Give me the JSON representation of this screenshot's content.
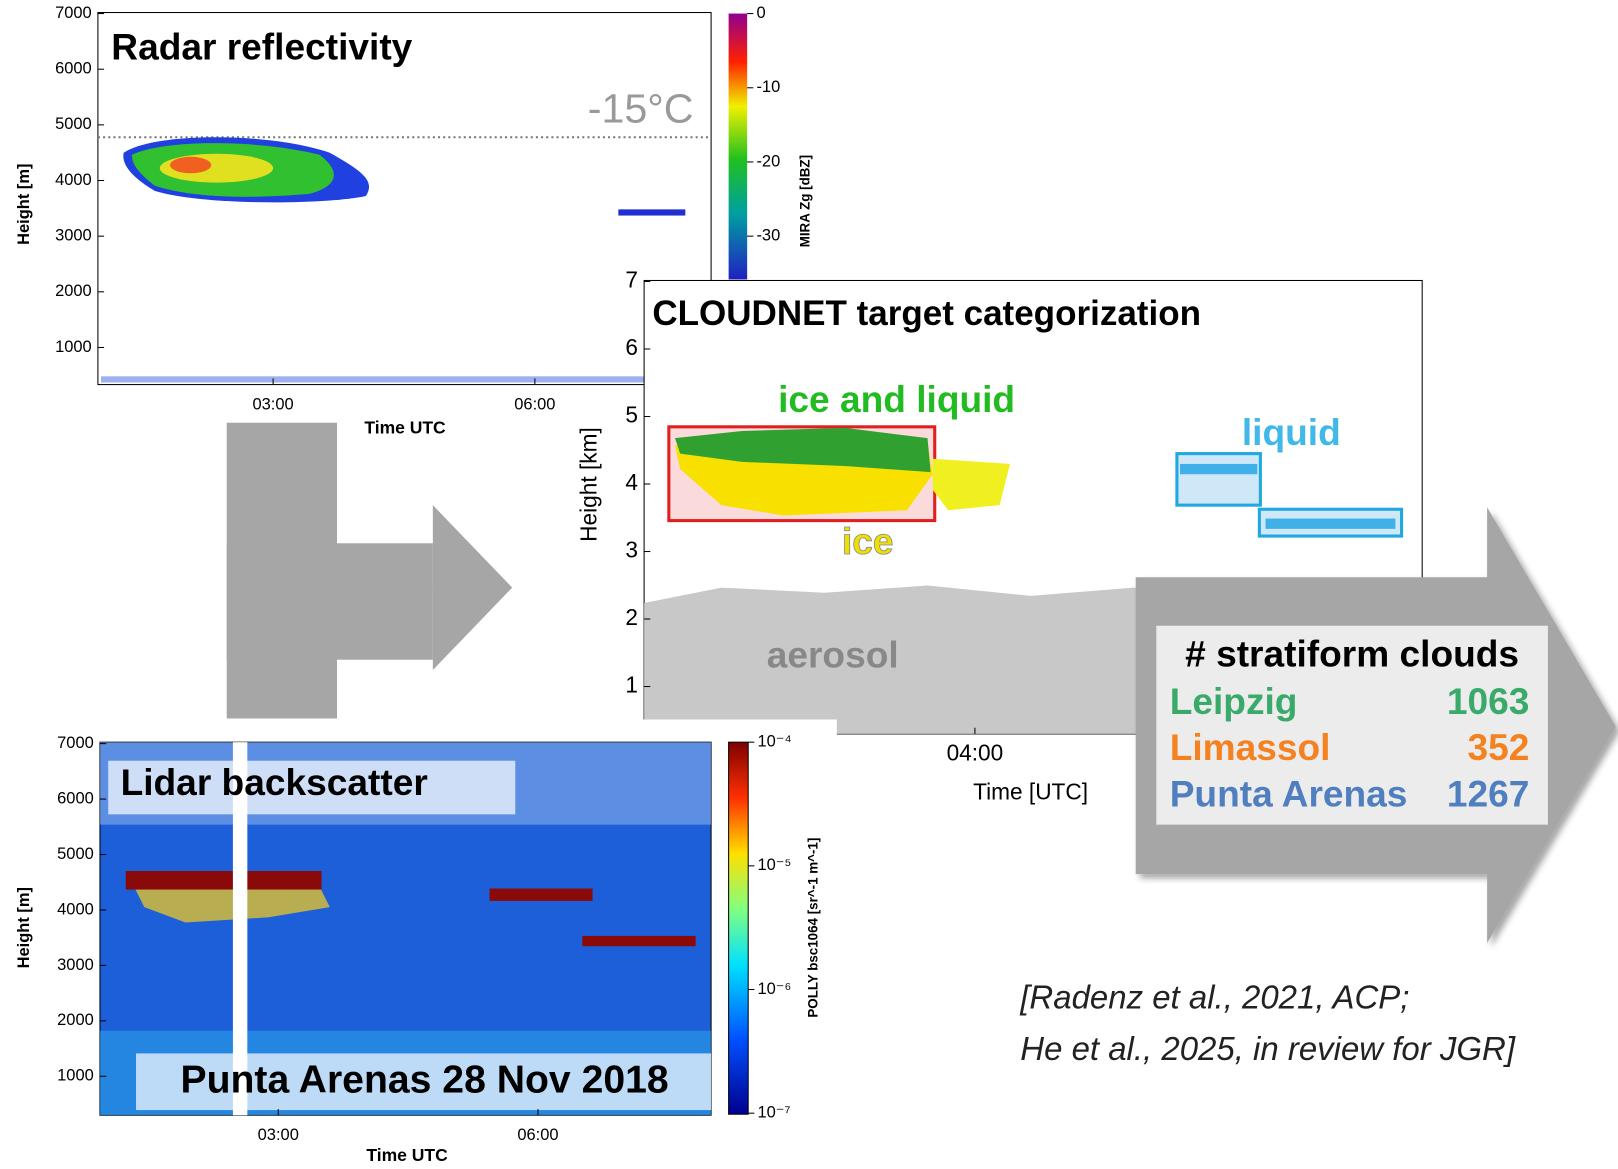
{
  "radar_panel": {
    "title": "Radar reflectivity",
    "annotation": "-15°C",
    "y_label": "Height [m]",
    "x_label": "Time UTC",
    "yticks": [
      1000,
      2000,
      3000,
      4000,
      5000,
      6000,
      7000
    ],
    "xticks": [
      "03:00",
      "06:00"
    ],
    "colorbar_label": "MIRA Zg [dBZ]",
    "colorbar_ticks": [
      0,
      -10,
      -20,
      -30
    ]
  },
  "cloudnet_panel": {
    "title": "CLOUDNET target categorization",
    "y_label": "Height [km]",
    "x_label": "Time [UTC]",
    "yticks": [
      1,
      2,
      3,
      4,
      5,
      6,
      7
    ],
    "xticks": [
      "04:00"
    ],
    "labels": {
      "ice_and_liquid": "ice and liquid",
      "liquid": "liquid",
      "ice": "ice",
      "aerosol": "aerosol"
    }
  },
  "lidar_panel": {
    "title": "Lidar backscatter",
    "station": "Punta Arenas 28 Nov 2018",
    "y_label": "Height [m]",
    "x_label": "Time UTC",
    "yticks": [
      1000,
      2000,
      3000,
      4000,
      5000,
      6000,
      7000
    ],
    "xticks": [
      "03:00",
      "06:00"
    ],
    "colorbar_label": "POLLY bsc1064 [sr^-1 m^-1]",
    "colorbar_ticks": [
      {
        "value": 0.0001,
        "label": "10⁻⁴"
      },
      {
        "value": 1e-05,
        "label": "10⁻⁵"
      },
      {
        "value": 1e-06,
        "label": "10⁻⁶"
      },
      {
        "value": 1e-07,
        "label": "10⁻⁷"
      }
    ]
  },
  "summary": {
    "title": "# stratiform clouds",
    "rows": [
      [
        "Leipzig",
        1063
      ],
      [
        "Limassol",
        352
      ],
      [
        "Punta Arenas",
        1267
      ]
    ]
  },
  "citation": [
    "[Radenz et al., 2021, ACP;",
    "He et al., 2025, in review for JGR]"
  ]
}
